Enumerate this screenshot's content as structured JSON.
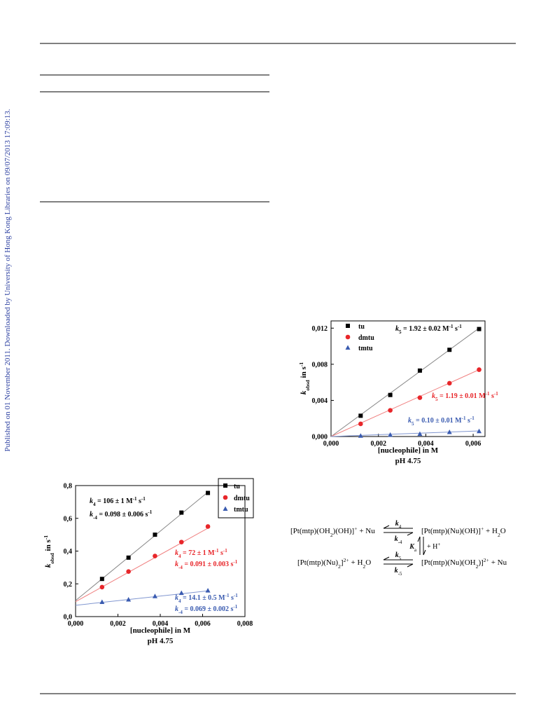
{
  "side_note": "Published on 01 November 2011. Downloaded by University of Hong Kong Libraries on 09/07/2013 17:09:13.",
  "chart_data": [
    {
      "type": "scatter",
      "xlabel": "[nucleophile] in M",
      "subtitle": "pH 4.75",
      "ylabel": [
        {
          "t": "k",
          "s": "i"
        },
        {
          "t": "obsd",
          "s": "sub"
        },
        {
          "t": " in s"
        },
        {
          "t": "-1",
          "s": "sup"
        }
      ],
      "xlim": [
        0,
        0.008
      ],
      "ylim": [
        0,
        0.8
      ],
      "xticks": [
        {
          "value": 0,
          "label": "0,000"
        },
        {
          "value": 0.002,
          "label": "0,002"
        },
        {
          "value": 0.004,
          "label": "0,004"
        },
        {
          "value": 0.006,
          "label": "0,006"
        },
        {
          "value": 0.008,
          "label": "0,008"
        }
      ],
      "yticks": [
        {
          "value": 0,
          "label": "0,0"
        },
        {
          "value": 0.2,
          "label": "0,2"
        },
        {
          "value": 0.4,
          "label": "0,4"
        },
        {
          "value": 0.6,
          "label": "0,6"
        },
        {
          "value": 0.8,
          "label": "0,8"
        }
      ],
      "legend_box": true,
      "x": [
        0.00125,
        0.0025,
        0.00375,
        0.005,
        0.00625
      ],
      "series": [
        {
          "name": "tu",
          "color": "#000000",
          "marker": "square",
          "values": [
            0.23,
            0.36,
            0.5,
            0.635,
            0.755
          ]
        },
        {
          "name": "dmtu",
          "color": "#e8262a",
          "marker": "circle",
          "values": [
            0.18,
            0.275,
            0.37,
            0.455,
            0.55
          ]
        },
        {
          "name": "tmtu",
          "color": "#3a5bb0",
          "marker": "triangle",
          "values": [
            0.09,
            0.105,
            0.125,
            0.145,
            0.16
          ]
        }
      ],
      "fits": [
        {
          "color": "#888888",
          "x": [
            0,
            0.00625
          ],
          "values": [
            0.098,
            0.76
          ]
        },
        {
          "color": "#f08080",
          "x": [
            0,
            0.00625
          ],
          "values": [
            0.091,
            0.54
          ]
        },
        {
          "color": "#8096d0",
          "x": [
            0,
            0.00625
          ],
          "values": [
            0.069,
            0.157
          ]
        }
      ],
      "annotations": [
        {
          "color": "#000000",
          "text": [
            {
              "t": "k",
              "s": "i"
            },
            {
              "t": "4",
              "s": "sub"
            },
            {
              "t": " = 106 ± 1 M"
            },
            {
              "t": "-1",
              "s": "sup"
            },
            {
              "t": " s"
            },
            {
              "t": "-1",
              "s": "sup"
            }
          ]
        },
        {
          "color": "#000000",
          "text": [
            {
              "t": "k",
              "s": "i"
            },
            {
              "t": "-4",
              "s": "sub"
            },
            {
              "t": " = 0.098 ± 0.006 s"
            },
            {
              "t": "-1",
              "s": "sup"
            }
          ]
        },
        {
          "color": "#e8262a",
          "text": [
            {
              "t": "k",
              "s": "i"
            },
            {
              "t": "4",
              "s": "sub"
            },
            {
              "t": " = 72 ± 1 M"
            },
            {
              "t": "-1",
              "s": "sup"
            },
            {
              "t": " s"
            },
            {
              "t": "-1",
              "s": "sup"
            }
          ]
        },
        {
          "color": "#e8262a",
          "text": [
            {
              "t": "k",
              "s": "i"
            },
            {
              "t": "-4",
              "s": "sub"
            },
            {
              "t": " = 0.091 ± 0.003 s"
            },
            {
              "t": "-1",
              "s": "sup"
            }
          ]
        },
        {
          "color": "#3a5bb0",
          "text": [
            {
              "t": "k",
              "s": "i"
            },
            {
              "t": "4",
              "s": "sub"
            },
            {
              "t": " = 14.1 ± 0.5 M"
            },
            {
              "t": "-1",
              "s": "sup"
            },
            {
              "t": " s"
            },
            {
              "t": "-1",
              "s": "sup"
            }
          ]
        },
        {
          "color": "#3a5bb0",
          "text": [
            {
              "t": "k",
              "s": "i"
            },
            {
              "t": "-4",
              "s": "sub"
            },
            {
              "t": " = 0.069 ± 0.002 s"
            },
            {
              "t": "-1",
              "s": "sup"
            }
          ]
        }
      ]
    },
    {
      "type": "scatter",
      "xlabel": "[nucleophile] in M",
      "subtitle": "pH 4.75",
      "ylabel": [
        {
          "t": "k",
          "s": "i"
        },
        {
          "t": "obsd",
          "s": "sub"
        },
        {
          "t": " in s"
        },
        {
          "t": "-1",
          "s": "sup"
        }
      ],
      "xlim": [
        0,
        0.0065
      ],
      "ylim": [
        0,
        0.0128
      ],
      "xticks": [
        {
          "value": 0,
          "label": "0,000"
        },
        {
          "value": 0.002,
          "label": "0,002"
        },
        {
          "value": 0.004,
          "label": "0,004"
        },
        {
          "value": 0.006,
          "label": "0,006"
        }
      ],
      "yticks": [
        {
          "value": 0,
          "label": "0,000"
        },
        {
          "value": 0.004,
          "label": "0,004"
        },
        {
          "value": 0.008,
          "label": "0,008"
        },
        {
          "value": 0.012,
          "label": "0,012"
        }
      ],
      "legend_box": false,
      "x": [
        0.00125,
        0.0025,
        0.00375,
        0.005,
        0.00625
      ],
      "series": [
        {
          "name": "tu",
          "color": "#000000",
          "marker": "square",
          "values": [
            0.0023,
            0.0046,
            0.0073,
            0.0096,
            0.0119
          ]
        },
        {
          "name": "dmtu",
          "color": "#e8262a",
          "marker": "circle",
          "values": [
            0.0014,
            0.0029,
            0.0043,
            0.0059,
            0.0074
          ]
        },
        {
          "name": "tmtu",
          "color": "#3a5bb0",
          "marker": "triangle",
          "values": [
            0.0001,
            0.0002,
            0.0003,
            0.0005,
            0.0006
          ]
        }
      ],
      "fits": [
        {
          "color": "#888888",
          "x": [
            0,
            0.00625
          ],
          "values": [
            0,
            0.012
          ]
        },
        {
          "color": "#f08080",
          "x": [
            0,
            0.00625
          ],
          "values": [
            0,
            0.0074
          ]
        },
        {
          "color": "#8096d0",
          "x": [
            0,
            0.00625
          ],
          "values": [
            0,
            0.00062
          ]
        }
      ],
      "annotations": [
        {
          "color": "#000000",
          "text": [
            {
              "t": "k",
              "s": "i"
            },
            {
              "t": "5",
              "s": "sub"
            },
            {
              "t": " = 1.92 ± 0.02 M"
            },
            {
              "t": "-1",
              "s": "sup"
            },
            {
              "t": " s"
            },
            {
              "t": "-1",
              "s": "sup"
            }
          ]
        },
        {
          "color": "#e8262a",
          "text": [
            {
              "t": "k",
              "s": "i"
            },
            {
              "t": "5",
              "s": "sub"
            },
            {
              "t": " = 1.19 ± 0.01 M"
            },
            {
              "t": "-1",
              "s": "sup"
            },
            {
              "t": " s"
            },
            {
              "t": "-1",
              "s": "sup"
            }
          ]
        },
        {
          "color": "#3a5bb0",
          "text": [
            {
              "t": "k",
              "s": "i"
            },
            {
              "t": "5",
              "s": "sub"
            },
            {
              "t": " = 0.10 ± 0.01 M"
            },
            {
              "t": "-1",
              "s": "sup"
            },
            {
              "t": " s"
            },
            {
              "t": "-1",
              "s": "sup"
            }
          ]
        }
      ]
    }
  ],
  "scheme": {
    "species": [
      [
        {
          "t": "[Pt(mtp)(OH"
        },
        {
          "t": "2",
          "s": "sub"
        },
        {
          "t": ")(OH)]"
        },
        {
          "t": "+",
          "s": "sup"
        },
        {
          "t": "  +  Nu"
        }
      ],
      [
        {
          "t": "[Pt(mtp)(Nu)(OH)]"
        },
        {
          "t": "+",
          "s": "sup"
        },
        {
          "t": "   +  H"
        },
        {
          "t": "2",
          "s": "sub"
        },
        {
          "t": "O"
        }
      ],
      [
        {
          "t": "[Pt(mtp)(Nu)"
        },
        {
          "t": "2",
          "s": "sub"
        },
        {
          "t": "]"
        },
        {
          "t": "2+",
          "s": "sup"
        },
        {
          "t": "   +  H"
        },
        {
          "t": "2",
          "s": "sub"
        },
        {
          "t": "O"
        }
      ],
      [
        {
          "t": "[Pt(mtp)(Nu)(OH"
        },
        {
          "t": "2",
          "s": "sub"
        },
        {
          "t": ")]"
        },
        {
          "t": "2+",
          "s": "sup"
        },
        {
          "t": "  +  Nu"
        }
      ]
    ],
    "labels": [
      [
        {
          "t": "k",
          "s": "ib"
        },
        {
          "t": "4",
          "s": "sub"
        }
      ],
      [
        {
          "t": "k",
          "s": "ib"
        },
        {
          "t": "-4",
          "s": "sub"
        }
      ],
      [
        {
          "t": "k",
          "s": "ib"
        },
        {
          "t": "5",
          "s": "sub"
        }
      ],
      [
        {
          "t": "k",
          "s": "ib"
        },
        {
          "t": "-5",
          "s": "sub"
        }
      ],
      [
        {
          "t": "K",
          "s": "ib"
        },
        {
          "t": "a",
          "s": "sub"
        }
      ],
      [
        {
          "t": "+ H"
        },
        {
          "t": "+",
          "s": "sup"
        }
      ]
    ]
  }
}
